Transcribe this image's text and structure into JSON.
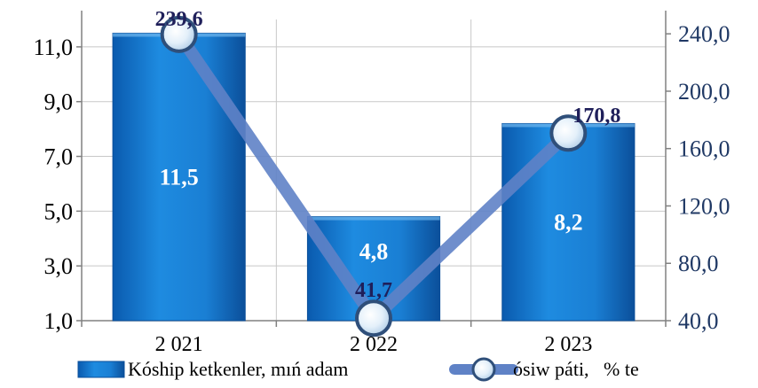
{
  "chart_data": {
    "type": "bar",
    "categories": [
      "2 021",
      "2 022",
      "2 023"
    ],
    "series": [
      {
        "name": "Kóship ketkenler, mıń adam",
        "kind": "bar",
        "axis": "left",
        "values": [
          11.5,
          4.8,
          8.2
        ],
        "labels": [
          "11,5",
          "4,8",
          "8,2"
        ]
      },
      {
        "name": "ósiw páti,   % te",
        "kind": "line",
        "axis": "right",
        "values": [
          239.6,
          41.7,
          170.8
        ],
        "labels": [
          "239,6",
          "41,7",
          "170,8"
        ]
      }
    ],
    "y_left": {
      "range": [
        1.0,
        12.0
      ],
      "ticks": [
        1.0,
        3.0,
        5.0,
        7.0,
        9.0,
        11.0
      ],
      "tick_labels": [
        "1,0",
        "3,0",
        "5,0",
        "7,0",
        "9,0",
        "11,0"
      ]
    },
    "y_right": {
      "range": [
        40.0,
        250.0
      ],
      "ticks": [
        40.0,
        80.0,
        120.0,
        160.0,
        200.0,
        240.0
      ],
      "tick_labels": [
        "40,0",
        "80,0",
        "120,0",
        "160,0",
        "200,0",
        "240,0"
      ]
    },
    "grid": true,
    "legend": "bottom",
    "colors": {
      "bar": "#1a7fd4",
      "bar_dark": "#0b4f9a",
      "line": "#5f82c6",
      "marker": "#dfeef8",
      "grid": "#c8c8c8",
      "right_axis_text": "#1f3864"
    }
  }
}
